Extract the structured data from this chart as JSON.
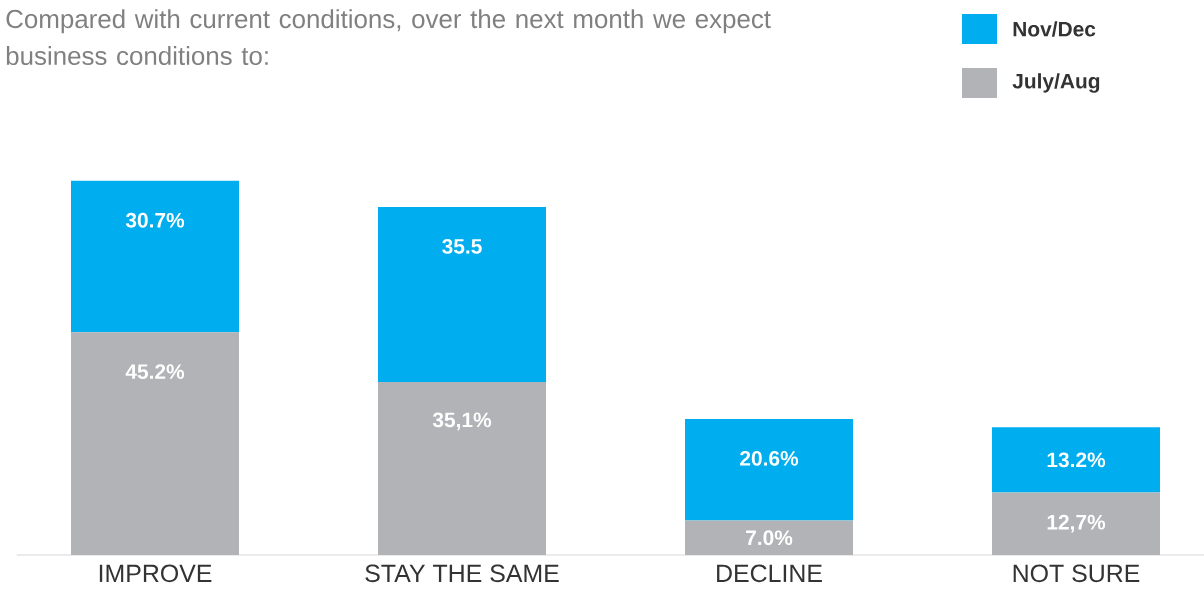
{
  "chart_data": {
    "type": "bar",
    "stacked": true,
    "title": "Compared with current conditions, over the next month we expect business conditions to:",
    "categories": [
      "IMPROVE",
      "STAY THE SAME",
      "DECLINE",
      "NOT SURE"
    ],
    "series": [
      {
        "name": "July/Aug",
        "color": "#b1b3b6",
        "values": [
          45.2,
          35.1,
          7.0,
          12.7
        ],
        "value_labels": [
          "45.2%",
          "35,1%",
          "7.0%",
          "12,7%"
        ]
      },
      {
        "name": "Nov/Dec",
        "color": "#00aeef",
        "values": [
          30.7,
          35.5,
          20.6,
          13.2
        ],
        "value_labels": [
          "30.7%",
          "35.5",
          "20.6%",
          "13.2%"
        ]
      }
    ],
    "legend": "top right"
  }
}
